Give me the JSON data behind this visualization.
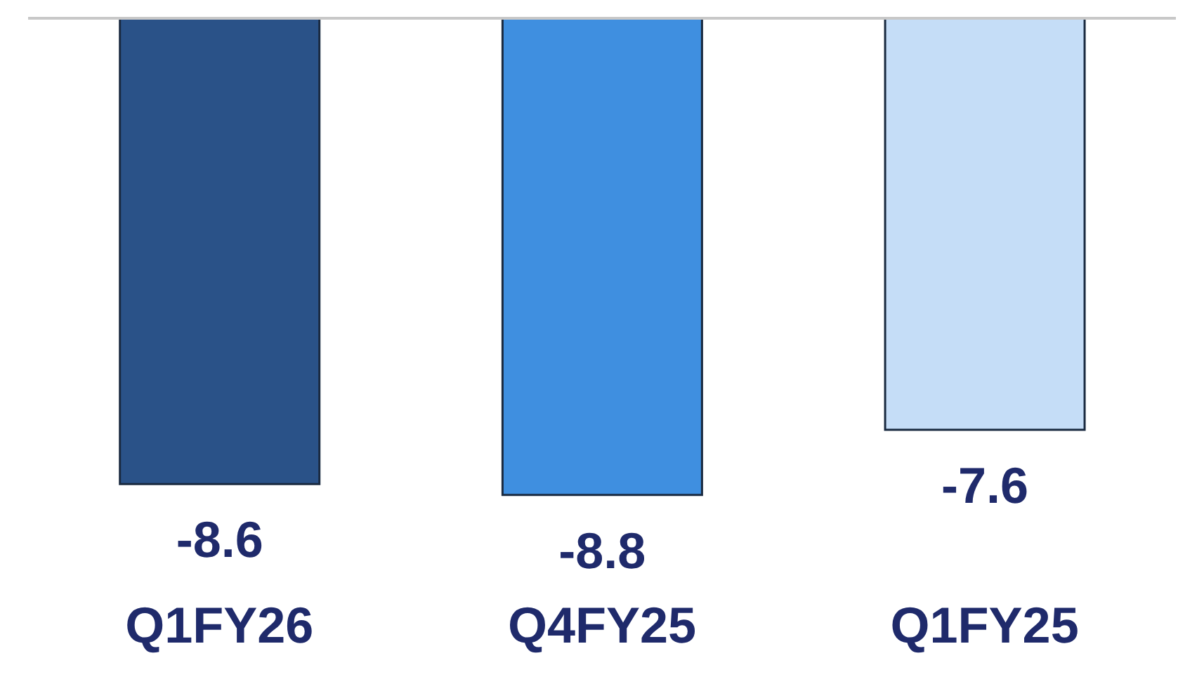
{
  "chart_data": {
    "type": "bar",
    "categories": [
      "Q1FY26",
      "Q4FY25",
      "Q1FY25"
    ],
    "values": [
      -8.6,
      -8.8,
      -7.6
    ],
    "colors": [
      "#2a5288",
      "#3f8fe0",
      "#c5ddf7"
    ],
    "data_labels": true,
    "grid": false,
    "legend": false
  }
}
